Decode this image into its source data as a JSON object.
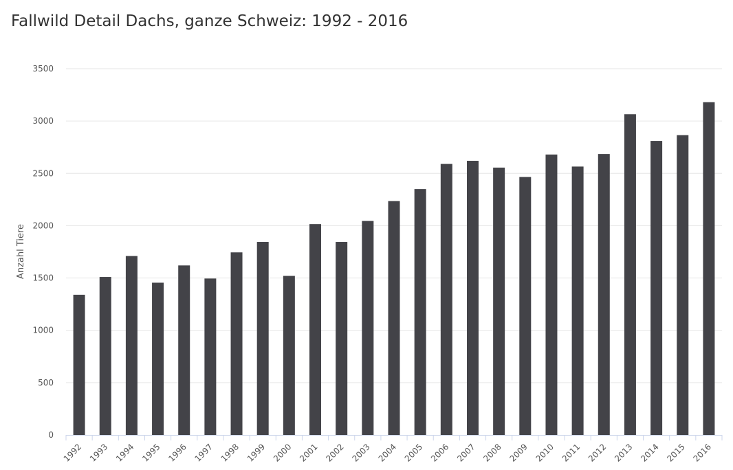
{
  "chart_data": {
    "type": "bar",
    "title": "Fallwild Detail Dachs, ganze Schweiz: 1992 - 2016",
    "ylabel": "Anzahl Tiere",
    "xlabel": "",
    "categories": [
      "1992",
      "1993",
      "1994",
      "1995",
      "1996",
      "1997",
      "1998",
      "1999",
      "2000",
      "2001",
      "2002",
      "2003",
      "2004",
      "2005",
      "2006",
      "2007",
      "2008",
      "2009",
      "2010",
      "2011",
      "2012",
      "2013",
      "2014",
      "2015",
      "2016"
    ],
    "values": [
      1340,
      1510,
      1710,
      1455,
      1620,
      1495,
      1745,
      1845,
      1520,
      2015,
      1845,
      2045,
      2235,
      2350,
      2590,
      2620,
      2555,
      2465,
      2680,
      2565,
      2685,
      3065,
      2810,
      2865,
      3180
    ],
    "ylim": [
      0,
      3500
    ],
    "yticks": [
      0,
      500,
      1000,
      1500,
      2000,
      2500,
      3000,
      3500
    ],
    "grid": true,
    "bar_color": "#434348",
    "grid_color": "#e6e6e6",
    "axis_color": "#ccd6eb"
  }
}
